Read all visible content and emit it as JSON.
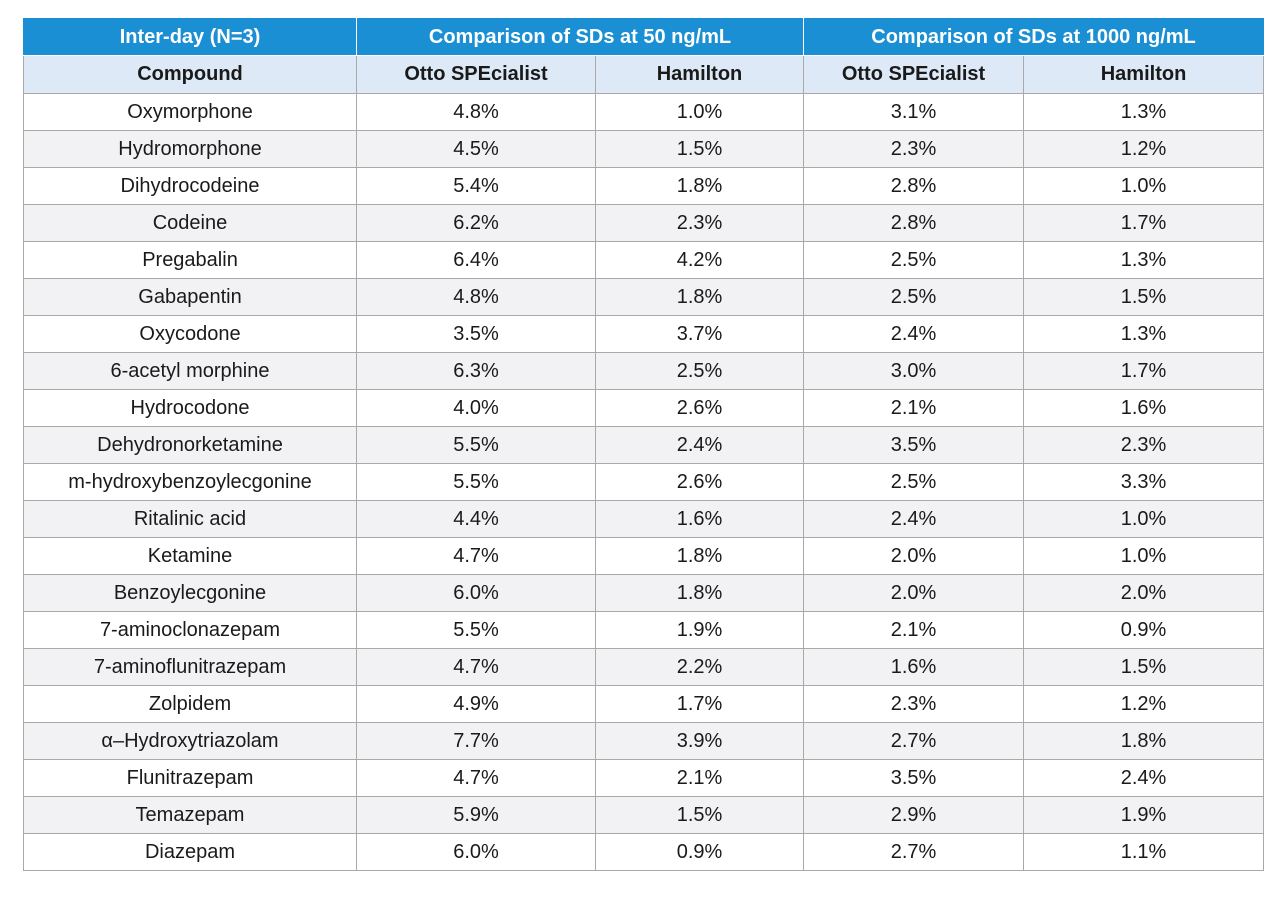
{
  "table": {
    "group_headers": [
      "Inter-day (N=3)",
      "Comparison of SDs at 50 ng/mL",
      "Comparison of SDs at 1000 ng/mL"
    ],
    "column_headers": [
      "Compound",
      "Otto SPEcialist",
      "Hamilton",
      "Otto SPEcialist",
      "Hamilton"
    ],
    "rows": [
      [
        "Oxymorphone",
        "4.8%",
        "1.0%",
        "3.1%",
        "1.3%"
      ],
      [
        "Hydromorphone",
        "4.5%",
        "1.5%",
        "2.3%",
        "1.2%"
      ],
      [
        "Dihydrocodeine",
        "5.4%",
        "1.8%",
        "2.8%",
        "1.0%"
      ],
      [
        "Codeine",
        "6.2%",
        "2.3%",
        "2.8%",
        "1.7%"
      ],
      [
        "Pregabalin",
        "6.4%",
        "4.2%",
        "2.5%",
        "1.3%"
      ],
      [
        "Gabapentin",
        "4.8%",
        "1.8%",
        "2.5%",
        "1.5%"
      ],
      [
        "Oxycodone",
        "3.5%",
        "3.7%",
        "2.4%",
        "1.3%"
      ],
      [
        "6-acetyl morphine",
        "6.3%",
        "2.5%",
        "3.0%",
        "1.7%"
      ],
      [
        "Hydrocodone",
        "4.0%",
        "2.6%",
        "2.1%",
        "1.6%"
      ],
      [
        "Dehydronorketamine",
        "5.5%",
        "2.4%",
        "3.5%",
        "2.3%"
      ],
      [
        "m-hydroxybenzoylecgonine",
        "5.5%",
        "2.6%",
        "2.5%",
        "3.3%"
      ],
      [
        "Ritalinic acid",
        "4.4%",
        "1.6%",
        "2.4%",
        "1.0%"
      ],
      [
        "Ketamine",
        "4.7%",
        "1.8%",
        "2.0%",
        "1.0%"
      ],
      [
        "Benzoylecgonine",
        "6.0%",
        "1.8%",
        "2.0%",
        "2.0%"
      ],
      [
        "7-aminoclonazepam",
        "5.5%",
        "1.9%",
        "2.1%",
        "0.9%"
      ],
      [
        "7-aminoflunitrazepam",
        "4.7%",
        "2.2%",
        "1.6%",
        "1.5%"
      ],
      [
        "Zolpidem",
        "4.9%",
        "1.7%",
        "2.3%",
        "1.2%"
      ],
      [
        "α–Hydroxytriazolam",
        "7.7%",
        "3.9%",
        "2.7%",
        "1.8%"
      ],
      [
        "Flunitrazepam",
        "4.7%",
        "2.1%",
        "3.5%",
        "2.4%"
      ],
      [
        "Temazepam",
        "5.9%",
        "1.5%",
        "2.9%",
        "1.9%"
      ],
      [
        "Diazepam",
        "6.0%",
        "0.9%",
        "2.7%",
        "1.1%"
      ]
    ]
  }
}
